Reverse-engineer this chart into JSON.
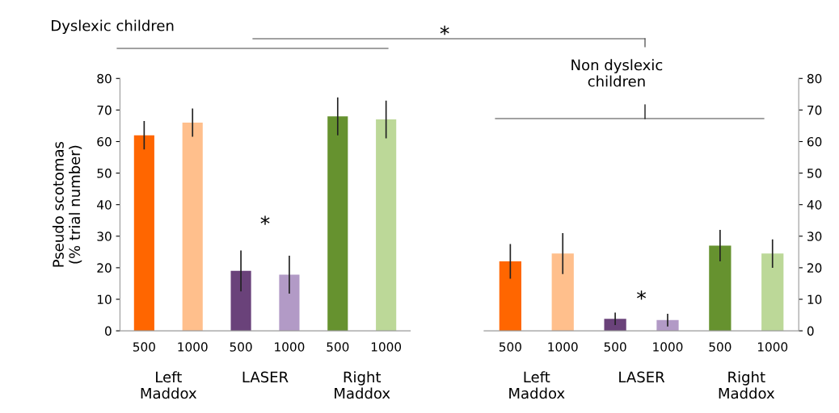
{
  "chart_data": [
    {
      "type": "bar",
      "title": "Dyslexic children",
      "ylabel": "Pseudo scotomas\n(% trial number)",
      "categories": [
        "500",
        "1000",
        "500",
        "1000",
        "500",
        "1000"
      ],
      "values": [
        62,
        66,
        19,
        17.8,
        68,
        67
      ],
      "errors": [
        4.5,
        4.5,
        6.5,
        6,
        6,
        6
      ],
      "colors": [
        "#ff6600",
        "#ffbf8c",
        "#6a427a",
        "#b29ac6",
        "#66922f",
        "#bcd898"
      ],
      "ylim": [
        0,
        80
      ],
      "yticks": [
        0,
        10,
        20,
        30,
        40,
        50,
        60,
        70,
        80
      ],
      "grid": false,
      "annotations": [
        "Left\nMaddox",
        "LASER",
        "Right\nMaddox",
        "*",
        "*"
      ]
    },
    {
      "type": "bar",
      "title": "Non dyslexic\nchildren",
      "categories": [
        "500",
        "1000",
        "500",
        "1000",
        "500",
        "1000"
      ],
      "values": [
        22,
        24.5,
        3.8,
        3.4,
        27,
        24.5
      ],
      "errors": [
        5.5,
        6.5,
        2,
        2,
        5,
        4.5
      ],
      "colors": [
        "#ff6600",
        "#ffbf8c",
        "#6a427a",
        "#b29ac6",
        "#66922f",
        "#bcd898"
      ],
      "ylim": [
        0,
        80
      ],
      "yticks": [
        0,
        10,
        20,
        30,
        40,
        50,
        60,
        70,
        80
      ],
      "grid": false,
      "annotations": [
        "Left\nMaddox",
        "LASER",
        "Right\nMaddox",
        "*"
      ]
    }
  ]
}
